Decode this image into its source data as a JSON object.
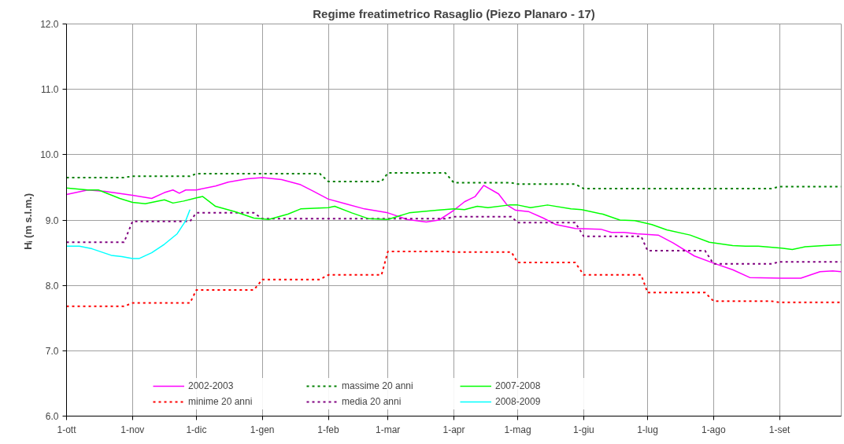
{
  "chart_data": {
    "type": "line",
    "title": "Regime freatimetrico Rasaglio (Piezo Planaro - 17)",
    "ylabel": "Hᵢ  (m s.l.m.)",
    "xlim": [
      "2002-10-01",
      "2003-09-30"
    ],
    "xticks": [
      {
        "value": "2002-10-01",
        "label": "1-ott"
      },
      {
        "value": "2002-11-01",
        "label": "1-nov"
      },
      {
        "value": "2002-12-01",
        "label": "1-dic"
      },
      {
        "value": "2003-01-01",
        "label": "1-gen"
      },
      {
        "value": "2003-02-01",
        "label": "1-feb"
      },
      {
        "value": "2003-03-01",
        "label": "1-mar"
      },
      {
        "value": "2003-04-01",
        "label": "1-apr"
      },
      {
        "value": "2003-05-01",
        "label": "1-mag"
      },
      {
        "value": "2003-06-01",
        "label": "1-giu"
      },
      {
        "value": "2003-07-01",
        "label": "1-lug"
      },
      {
        "value": "2003-08-01",
        "label": "1-ago"
      },
      {
        "value": "2003-09-01",
        "label": "1-set"
      }
    ],
    "ylim": [
      6,
      12
    ],
    "yticks": [
      {
        "value": 6,
        "label": "6.0"
      },
      {
        "value": 7,
        "label": "7.0"
      },
      {
        "value": 8,
        "label": "8.0"
      },
      {
        "value": 9,
        "label": "9.0"
      },
      {
        "value": 10,
        "label": "10.0"
      },
      {
        "value": 11,
        "label": "11.0"
      },
      {
        "value": 12,
        "label": "12.0"
      }
    ],
    "grid": true,
    "legend": "bottom",
    "marker": "none",
    "series": [
      {
        "name": "2002-2003",
        "color": "#ff00ff",
        "line_style": "solid",
        "x": [
          "2002-10-01",
          "2002-10-11",
          "2002-10-19",
          "2002-11-01",
          "2002-11-10",
          "2002-11-16",
          "2002-11-20",
          "2002-11-23",
          "2002-11-26",
          "2002-12-01",
          "2002-12-10",
          "2002-12-16",
          "2002-12-25",
          "2003-01-01",
          "2003-01-10",
          "2003-01-19",
          "2003-01-25",
          "2003-02-01",
          "2003-02-09",
          "2003-02-18",
          "2003-03-01",
          "2003-03-10",
          "2003-03-19",
          "2003-03-25",
          "2003-04-01",
          "2003-04-06",
          "2003-04-11",
          "2003-04-15",
          "2003-04-22",
          "2003-04-26",
          "2003-04-30",
          "2003-05-06",
          "2003-05-13",
          "2003-05-19",
          "2003-05-28",
          "2003-06-09",
          "2003-06-14",
          "2003-06-20",
          "2003-06-26",
          "2003-07-06",
          "2003-07-13",
          "2003-07-23",
          "2003-08-01",
          "2003-08-10",
          "2003-08-18",
          "2003-09-02",
          "2003-09-11",
          "2003-09-20",
          "2003-09-26",
          "2003-09-30"
        ],
        "values": [
          9.39,
          9.46,
          9.44,
          9.38,
          9.33,
          9.42,
          9.46,
          9.41,
          9.46,
          9.46,
          9.52,
          9.58,
          9.63,
          9.65,
          9.62,
          9.54,
          9.44,
          9.32,
          9.25,
          9.17,
          9.11,
          9.01,
          8.97,
          9.0,
          9.15,
          9.28,
          9.36,
          9.53,
          9.4,
          9.23,
          9.15,
          9.13,
          9.03,
          8.93,
          8.87,
          8.86,
          8.81,
          8.81,
          8.79,
          8.77,
          8.65,
          8.45,
          8.34,
          8.24,
          8.12,
          8.11,
          8.11,
          8.21,
          8.22,
          8.21
        ]
      },
      {
        "name": "minime 20 anni",
        "color": "#ff0000",
        "line_style": "dashed",
        "x": [
          "2002-10-01",
          "2002-10-28",
          "2002-11-01",
          "2002-11-28",
          "2002-12-01",
          "2002-12-28",
          "2003-01-01",
          "2003-01-28",
          "2003-02-01",
          "2003-02-26",
          "2003-03-01",
          "2003-03-28",
          "2003-04-01",
          "2003-04-28",
          "2003-05-01",
          "2003-05-28",
          "2003-06-01",
          "2003-06-28",
          "2003-07-01",
          "2003-07-28",
          "2003-08-01",
          "2003-08-28",
          "2003-09-01",
          "2003-09-30"
        ],
        "values": [
          7.68,
          7.68,
          7.73,
          7.73,
          7.93,
          7.93,
          8.09,
          8.09,
          8.16,
          8.16,
          8.52,
          8.52,
          8.51,
          8.51,
          8.35,
          8.35,
          8.16,
          8.16,
          7.89,
          7.89,
          7.76,
          7.76,
          7.74,
          7.74
        ]
      },
      {
        "name": "massime 20 anni",
        "color": "#008000",
        "line_style": "dashed",
        "x": [
          "2002-10-01",
          "2002-10-28",
          "2002-11-01",
          "2002-11-28",
          "2002-12-01",
          "2003-01-28",
          "2003-02-01",
          "2003-02-26",
          "2003-03-01",
          "2003-03-28",
          "2003-04-01",
          "2003-04-28",
          "2003-05-01",
          "2003-05-28",
          "2003-06-01",
          "2003-08-28",
          "2003-09-01",
          "2003-09-30"
        ],
        "values": [
          9.65,
          9.65,
          9.67,
          9.67,
          9.71,
          9.71,
          9.59,
          9.59,
          9.72,
          9.72,
          9.57,
          9.57,
          9.55,
          9.55,
          9.48,
          9.48,
          9.51,
          9.51
        ]
      },
      {
        "name": "media 20 anni",
        "color": "#800080",
        "line_style": "dashed",
        "x": [
          "2002-10-01",
          "2002-10-28",
          "2002-11-01",
          "2002-11-28",
          "2002-12-01",
          "2002-12-28",
          "2003-01-01",
          "2003-03-28",
          "2003-04-01",
          "2003-04-28",
          "2003-05-01",
          "2003-05-28",
          "2003-06-01",
          "2003-06-28",
          "2003-07-01",
          "2003-07-28",
          "2003-08-01",
          "2003-08-28",
          "2003-09-01",
          "2003-09-30"
        ],
        "values": [
          8.66,
          8.66,
          8.98,
          8.98,
          9.11,
          9.11,
          9.02,
          9.02,
          9.05,
          9.05,
          8.96,
          8.96,
          8.75,
          8.75,
          8.53,
          8.53,
          8.33,
          8.33,
          8.36,
          8.36
        ]
      },
      {
        "name": "2007-2008",
        "color": "#00ff00",
        "line_style": "solid",
        "x": [
          "2002-10-01",
          "2002-10-11",
          "2002-10-16",
          "2002-10-26",
          "2002-11-01",
          "2002-11-07",
          "2002-11-16",
          "2002-11-20",
          "2002-11-25",
          "2002-12-01",
          "2002-12-04",
          "2002-12-10",
          "2002-12-19",
          "2002-12-28",
          "2003-01-04",
          "2003-01-13",
          "2003-01-19",
          "2003-02-01",
          "2003-02-04",
          "2003-02-12",
          "2003-02-20",
          "2003-03-01",
          "2003-03-11",
          "2003-03-24",
          "2003-04-01",
          "2003-04-06",
          "2003-04-12",
          "2003-04-17",
          "2003-04-27",
          "2003-05-01",
          "2003-05-07",
          "2003-05-15",
          "2003-05-26",
          "2003-05-31",
          "2003-06-10",
          "2003-06-18",
          "2003-06-25",
          "2003-07-03",
          "2003-07-10",
          "2003-07-21",
          "2003-07-30",
          "2003-08-10",
          "2003-08-16",
          "2003-08-22",
          "2003-09-02",
          "2003-09-07",
          "2003-09-13",
          "2003-09-22",
          "2003-09-30"
        ],
        "values": [
          9.49,
          9.46,
          9.46,
          9.33,
          9.27,
          9.25,
          9.31,
          9.26,
          9.29,
          9.34,
          9.36,
          9.21,
          9.13,
          9.03,
          9.01,
          9.09,
          9.17,
          9.19,
          9.21,
          9.11,
          9.02,
          9.01,
          9.11,
          9.15,
          9.17,
          9.16,
          9.21,
          9.19,
          9.23,
          9.23,
          9.19,
          9.23,
          9.17,
          9.16,
          9.09,
          9.0,
          8.99,
          8.93,
          8.85,
          8.77,
          8.66,
          8.61,
          8.6,
          8.6,
          8.57,
          8.55,
          8.59,
          8.61,
          8.62
        ]
      },
      {
        "name": "2008-2009",
        "color": "#00ffff",
        "line_style": "solid",
        "x": [
          "2002-10-01",
          "2002-10-07",
          "2002-10-13",
          "2002-10-22",
          "2002-10-27",
          "2002-11-01",
          "2002-11-04",
          "2002-11-10",
          "2002-11-16",
          "2002-11-22",
          "2002-11-26",
          "2002-11-28"
        ],
        "values": [
          8.6,
          8.6,
          8.56,
          8.46,
          8.44,
          8.41,
          8.41,
          8.5,
          8.63,
          8.79,
          8.99,
          9.16
        ]
      }
    ]
  }
}
